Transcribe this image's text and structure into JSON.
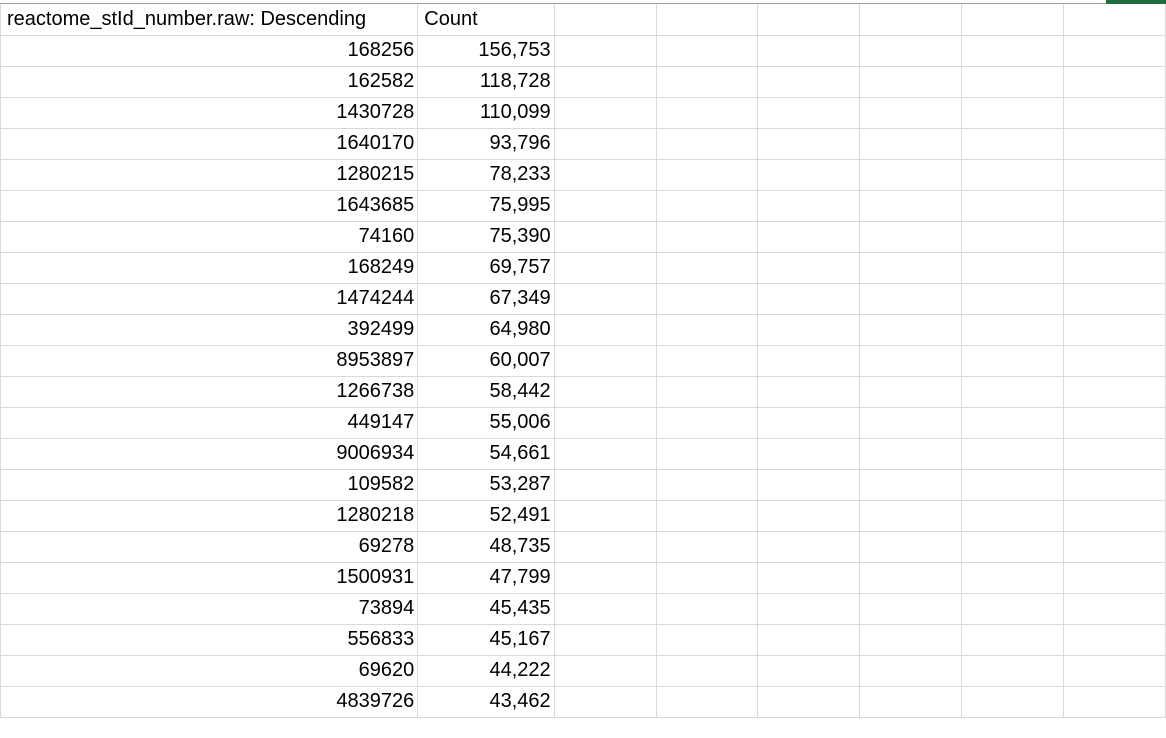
{
  "spreadsheet": {
    "headers": [
      "reactome_stId_number.raw: Descending",
      "Count"
    ],
    "rows": [
      [
        "168256",
        "156,753"
      ],
      [
        "162582",
        "118,728"
      ],
      [
        "1430728",
        "110,099"
      ],
      [
        "1640170",
        "93,796"
      ],
      [
        "1280215",
        "78,233"
      ],
      [
        "1643685",
        "75,995"
      ],
      [
        "74160",
        "75,390"
      ],
      [
        "168249",
        "69,757"
      ],
      [
        "1474244",
        "67,349"
      ],
      [
        "392499",
        "64,980"
      ],
      [
        "8953897",
        "60,007"
      ],
      [
        "1266738",
        "58,442"
      ],
      [
        "449147",
        "55,006"
      ],
      [
        "9006934",
        "54,661"
      ],
      [
        "109582",
        "53,287"
      ],
      [
        "1280218",
        "52,491"
      ],
      [
        "69278",
        "48,735"
      ],
      [
        "1500931",
        "47,799"
      ],
      [
        "73894",
        "45,435"
      ],
      [
        "556833",
        "45,167"
      ],
      [
        "69620",
        "44,222"
      ],
      [
        "4839726",
        "43,462"
      ]
    ],
    "selection_color": "#1e6e3f"
  }
}
